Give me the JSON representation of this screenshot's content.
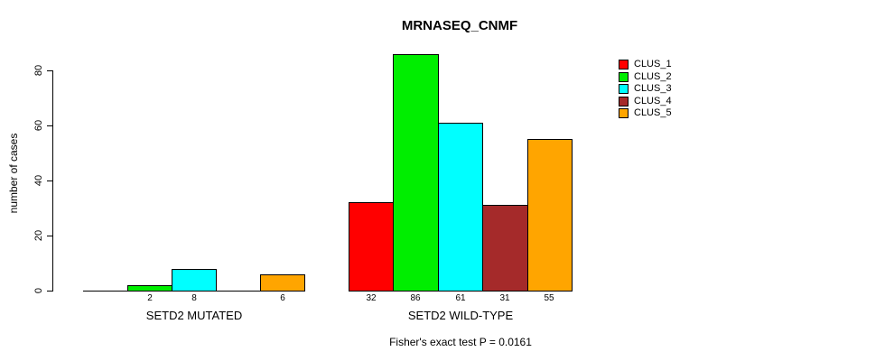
{
  "chart_data": {
    "type": "bar",
    "title": "MRNASEQ_CNMF",
    "ylabel": "number of cases",
    "xlabel": "",
    "yticks": [
      0,
      20,
      40,
      60,
      80
    ],
    "ylim": [
      0,
      88
    ],
    "grid": false,
    "legend_position": "top-right",
    "categories": [
      "SETD2 MUTATED",
      "SETD2 WILD-TYPE"
    ],
    "series": [
      {
        "name": "CLUS_1",
        "color": "#ff0000",
        "values": [
          0,
          32
        ]
      },
      {
        "name": "CLUS_2",
        "color": "#00ee00",
        "values": [
          2,
          86
        ]
      },
      {
        "name": "CLUS_3",
        "color": "#00ffff",
        "values": [
          8,
          61
        ]
      },
      {
        "name": "CLUS_4",
        "color": "#a52a2a",
        "values": [
          0,
          31
        ]
      },
      {
        "name": "CLUS_5",
        "color": "#ffa500",
        "values": [
          6,
          55
        ]
      }
    ],
    "zero_value_bars_drawn_as_flat_segments": true,
    "annotation": "Fisher's exact test P = 0.0161"
  }
}
